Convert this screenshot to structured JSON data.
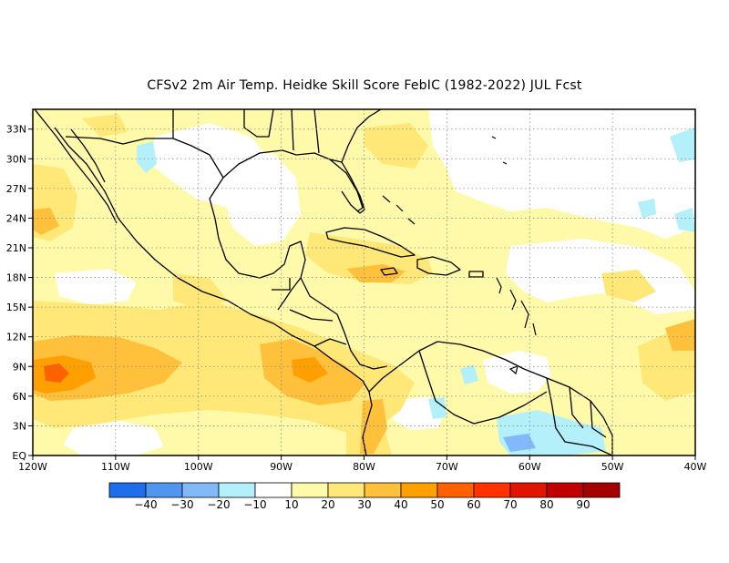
{
  "title": "CFSv2  2m Air Temp. Heidke Skill Score FebIC (1982-2022) JUL Fcst",
  "map": {
    "lon_range": [
      -120,
      -40
    ],
    "lat_range": [
      0,
      35
    ],
    "lon_ticks": [
      {
        "value": -120,
        "label": "120W"
      },
      {
        "value": -110,
        "label": "110W"
      },
      {
        "value": -100,
        "label": "100W"
      },
      {
        "value": -90,
        "label": "90W"
      },
      {
        "value": -80,
        "label": "80W"
      },
      {
        "value": -70,
        "label": "70W"
      },
      {
        "value": -60,
        "label": "60W"
      },
      {
        "value": -50,
        "label": "50W"
      },
      {
        "value": -40,
        "label": "40W"
      }
    ],
    "lat_ticks": [
      {
        "value": 0,
        "label": "EQ"
      },
      {
        "value": 3,
        "label": "3N"
      },
      {
        "value": 6,
        "label": "6N"
      },
      {
        "value": 9,
        "label": "9N"
      },
      {
        "value": 12,
        "label": "12N"
      },
      {
        "value": 15,
        "label": "15N"
      },
      {
        "value": 18,
        "label": "18N"
      },
      {
        "value": 21,
        "label": "21N"
      },
      {
        "value": 24,
        "label": "24N"
      },
      {
        "value": 27,
        "label": "27N"
      },
      {
        "value": 30,
        "label": "30N"
      },
      {
        "value": 33,
        "label": "33N"
      }
    ],
    "gridlines": true
  },
  "colorbar": {
    "colors": [
      "#1e6eeb",
      "#5096f0",
      "#82b9fa",
      "#b4f0fa",
      "#ffffff",
      "#fffaaa",
      "#ffe878",
      "#ffc03c",
      "#ffa000",
      "#ff6000",
      "#ff3200",
      "#e11400",
      "#c00000",
      "#a50000"
    ],
    "labels": [
      "-40",
      "-30",
      "-20",
      "-10",
      "10",
      "20",
      "30",
      "40",
      "50",
      "60",
      "70",
      "80",
      "90"
    ]
  },
  "colors": {
    "level_10_20": "#fffaaa",
    "level_20_30": "#ffe878",
    "level_30_40": "#ffc03c",
    "level_40_50": "#ffa000",
    "level_50_60": "#ff6000",
    "level_neg_10_20": "#b4f0fa",
    "level_neg_20_30": "#82b9fa"
  }
}
